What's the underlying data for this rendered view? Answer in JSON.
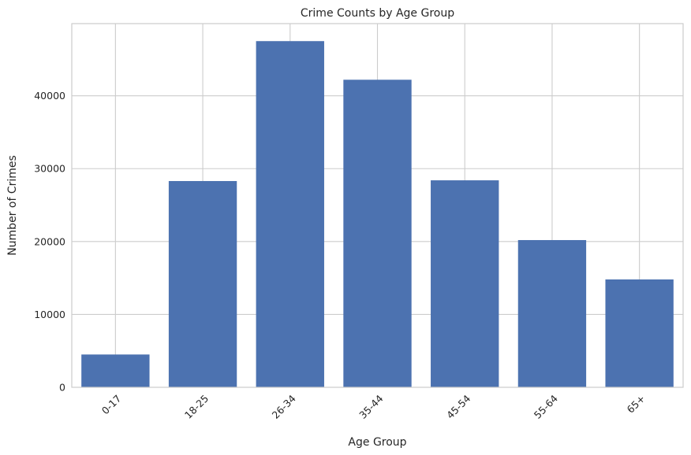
{
  "chart_data": {
    "type": "bar",
    "title": "Crime Counts by Age Group",
    "xlabel": "Age Group",
    "ylabel": "Number of Crimes",
    "categories": [
      "0-17",
      "18-25",
      "26-34",
      "35-44",
      "45-54",
      "55-64",
      "65+"
    ],
    "values": [
      4500,
      28300,
      47500,
      42200,
      28400,
      20200,
      14800
    ],
    "ylim": [
      0,
      49900
    ],
    "yticks": [
      0,
      10000,
      20000,
      30000,
      40000
    ],
    "ytick_labels": [
      "0",
      "10000",
      "20000",
      "30000",
      "40000"
    ],
    "grid": true,
    "bar_color": "#4c72b0",
    "grid_color": "#cccccc"
  }
}
